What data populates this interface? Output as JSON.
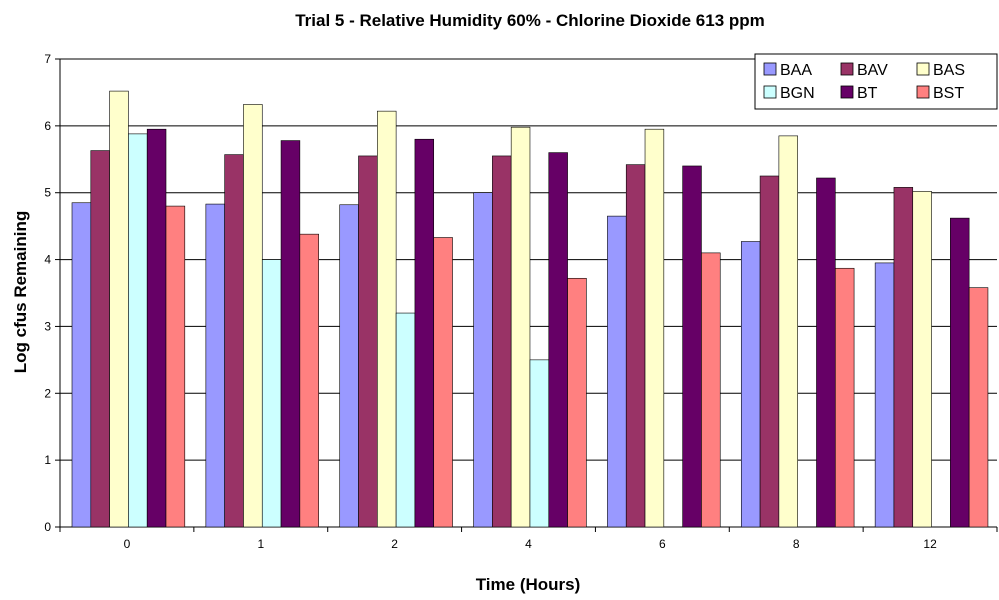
{
  "chart_data": {
    "type": "bar",
    "title": "Trial 5 - Relative Humidity 60% - Chlorine Dioxide 613 ppm",
    "xlabel": "Time (Hours)",
    "ylabel": "Log cfus Remaining",
    "categories": [
      "0",
      "1",
      "2",
      "4",
      "6",
      "8",
      "12"
    ],
    "ylim": [
      0,
      7
    ],
    "yticks": [
      "0",
      "1",
      "2",
      "3",
      "4",
      "5",
      "6",
      "7"
    ],
    "grid": true,
    "legend_position": "top-right",
    "series": [
      {
        "name": "BAA",
        "color": "#9999FF",
        "values": [
          4.85,
          4.83,
          4.82,
          5.0,
          4.65,
          4.27,
          3.95
        ]
      },
      {
        "name": "BAV",
        "color": "#993366",
        "values": [
          5.63,
          5.57,
          5.55,
          5.55,
          5.42,
          5.25,
          5.08
        ]
      },
      {
        "name": "BAS",
        "color": "#FFFFCC",
        "values": [
          6.52,
          6.32,
          6.22,
          5.98,
          5.95,
          5.85,
          5.02
        ]
      },
      {
        "name": "BGN",
        "color": "#CCFFFF",
        "values": [
          5.88,
          4.0,
          3.2,
          2.5,
          null,
          null,
          null
        ]
      },
      {
        "name": "BT",
        "color": "#660066",
        "values": [
          5.95,
          5.78,
          5.8,
          5.6,
          5.4,
          5.22,
          4.62
        ]
      },
      {
        "name": "BST",
        "color": "#FF8080",
        "values": [
          4.8,
          4.38,
          4.33,
          3.72,
          4.1,
          3.87,
          3.58
        ]
      }
    ]
  }
}
